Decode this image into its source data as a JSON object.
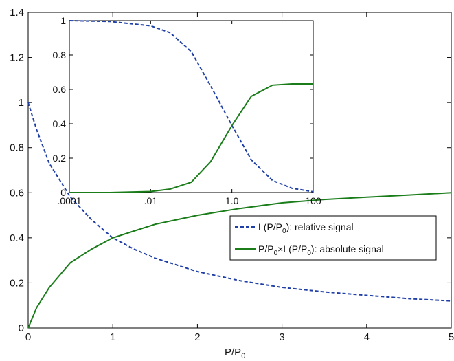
{
  "chart_data": [
    {
      "type": "line",
      "title": "",
      "xlabel": "P/P0",
      "ylabel": "",
      "xlim": [
        0,
        5
      ],
      "ylim": [
        0,
        1.4
      ],
      "xticks": [
        "0",
        "1",
        "2",
        "3",
        "4",
        "5"
      ],
      "yticks": [
        "0",
        "0.2",
        "0.4",
        "0.6",
        "0.8",
        "1",
        "1.2",
        "1.4"
      ],
      "grid": false,
      "legend_position": "center-right",
      "series": [
        {
          "name": "L(P/P0): relative signal",
          "legend_parts": [
            "L(P/P",
            "0",
            "): relative signal"
          ],
          "style": "dashed",
          "color": "#1f3fa6",
          "x": [
            0,
            0.1,
            0.25,
            0.5,
            0.75,
            1,
            1.25,
            1.5,
            2,
            2.5,
            3,
            3.5,
            4,
            4.5,
            5
          ],
          "y": [
            1.0,
            0.88,
            0.73,
            0.58,
            0.48,
            0.4,
            0.35,
            0.31,
            0.25,
            0.21,
            0.18,
            0.16,
            0.145,
            0.13,
            0.12
          ]
        },
        {
          "name": "P/P0×L(P/P0): absolute signal",
          "legend_parts": [
            "P/P",
            "0",
            "×L(P/P",
            "0",
            "): absolute signal"
          ],
          "style": "solid",
          "color": "#1a7d1a",
          "x": [
            0,
            0.1,
            0.25,
            0.5,
            0.75,
            1,
            1.25,
            1.5,
            2,
            2.5,
            3,
            3.5,
            4,
            4.5,
            5
          ],
          "y": [
            0.0,
            0.09,
            0.18,
            0.29,
            0.35,
            0.4,
            0.43,
            0.46,
            0.5,
            0.53,
            0.555,
            0.57,
            0.58,
            0.59,
            0.6
          ]
        }
      ]
    },
    {
      "type": "line",
      "title": "",
      "scale_x": "log",
      "xlim": [
        0.0001,
        100
      ],
      "ylim": [
        0,
        1
      ],
      "xticks": [
        ".0001",
        ".01",
        "1.0",
        "100"
      ],
      "yticks": [
        "0",
        "0.2",
        "0.4",
        "0.6",
        "0.8",
        "1"
      ],
      "grid": false,
      "series": [
        {
          "style": "dashed",
          "color": "#1f3fa6",
          "x": [
            0.0001,
            0.001,
            0.01,
            0.03,
            0.1,
            0.3,
            1,
            3,
            10,
            30,
            100
          ],
          "y": [
            1.0,
            0.995,
            0.97,
            0.93,
            0.82,
            0.62,
            0.39,
            0.19,
            0.07,
            0.025,
            0.005
          ]
        },
        {
          "style": "solid",
          "color": "#1a7d1a",
          "x": [
            0.0001,
            0.001,
            0.01,
            0.03,
            0.1,
            0.3,
            1,
            3,
            10,
            30,
            100
          ],
          "y": [
            0.0,
            0.0,
            0.006,
            0.02,
            0.06,
            0.18,
            0.39,
            0.56,
            0.625,
            0.632,
            0.632
          ]
        }
      ]
    }
  ]
}
